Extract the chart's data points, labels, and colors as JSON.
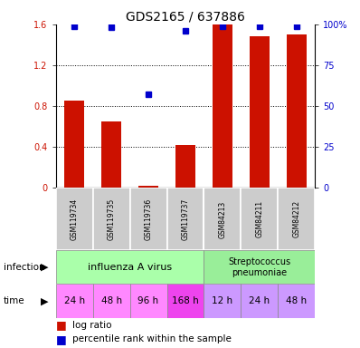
{
  "title": "GDS2165 / 637886",
  "samples": [
    "GSM119734",
    "GSM119735",
    "GSM119736",
    "GSM119737",
    "GSM84213",
    "GSM84211",
    "GSM84212"
  ],
  "log_ratio": [
    0.85,
    0.65,
    0.02,
    0.42,
    1.6,
    1.48,
    1.5
  ],
  "percentile_rank": [
    99,
    98,
    57,
    96,
    99,
    99,
    99
  ],
  "bar_color": "#cc1100",
  "dot_color": "#0000cc",
  "infection_labels": [
    "influenza A virus",
    "Streptococcus\npneumoniae"
  ],
  "time_labels": [
    "24 h",
    "48 h",
    "96 h",
    "168 h",
    "12 h",
    "24 h",
    "48 h"
  ],
  "influenza_color": "#aaffaa",
  "strep_color": "#99ee99",
  "time_color_light": "#ff88ff",
  "time_color_dark": "#ee44ee",
  "time_color_strep": "#cc99ff",
  "sample_bg": "#cccccc",
  "ylim_left": [
    0,
    1.6
  ],
  "ylim_right": [
    0,
    100
  ],
  "yticks_left": [
    0,
    0.4,
    0.8,
    1.2,
    1.6
  ],
  "yticks_right": [
    0,
    25,
    50,
    75,
    100
  ],
  "ytick_labels_right": [
    "0",
    "25",
    "50",
    "75",
    "100%"
  ]
}
